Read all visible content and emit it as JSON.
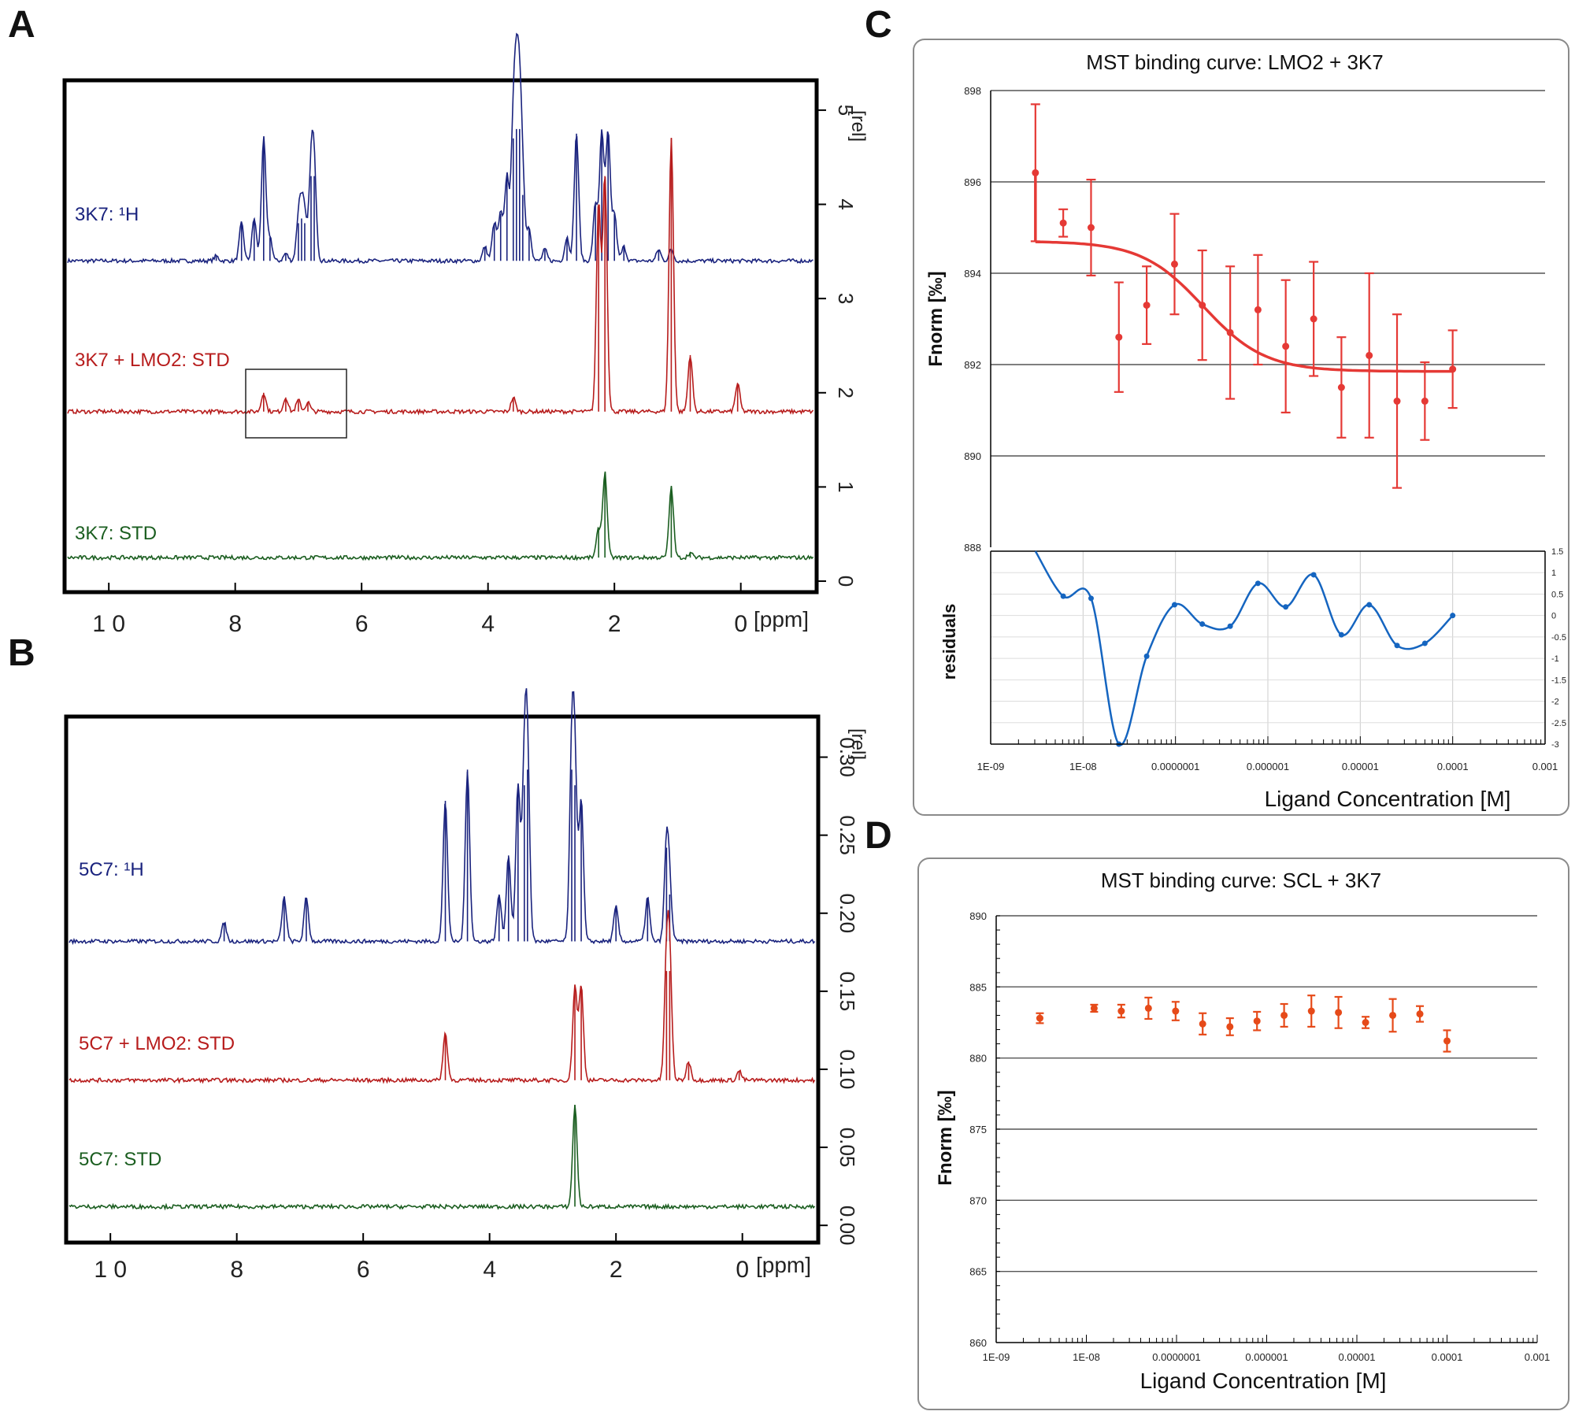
{
  "panel_labels": [
    "A",
    "B",
    "C",
    "D"
  ],
  "chart_data": [
    {
      "id": "A",
      "type": "line",
      "title": "",
      "xlabel": "[ppm]",
      "ylabel": "[rel]",
      "x_ticks": [
        "1 0",
        "8",
        "6",
        "4",
        "2",
        "0"
      ],
      "x_tick_values": [
        10,
        8,
        6,
        4,
        2,
        0
      ],
      "y_ticks": [
        "0",
        "1",
        "2",
        "3",
        "4",
        "5"
      ],
      "xlim": [
        10.7,
        -1.2
      ],
      "ylim": [
        -0.1,
        5.3
      ],
      "series": [
        {
          "name": "3K7: ¹H",
          "color": "#1a237e",
          "baseline": 3.4,
          "peaks": [
            [
              8.3,
              0.05
            ],
            [
              7.9,
              0.4
            ],
            [
              7.7,
              0.45
            ],
            [
              7.55,
              1.3
            ],
            [
              7.45,
              0.25
            ],
            [
              7.2,
              0.08
            ],
            [
              7.0,
              0.4
            ],
            [
              6.95,
              0.45
            ],
            [
              6.9,
              0.4
            ],
            [
              6.8,
              0.9
            ],
            [
              6.75,
              0.9
            ],
            [
              4.05,
              0.15
            ],
            [
              3.9,
              0.4
            ],
            [
              3.8,
              0.5
            ],
            [
              3.7,
              0.9
            ],
            [
              3.6,
              1.3
            ],
            [
              3.55,
              1.4
            ],
            [
              3.5,
              1.4
            ],
            [
              3.45,
              0.7
            ],
            [
              3.35,
              0.35
            ],
            [
              3.1,
              0.12
            ],
            [
              2.75,
              0.25
            ],
            [
              2.6,
              1.35
            ],
            [
              2.3,
              0.6
            ],
            [
              2.2,
              1.35
            ],
            [
              2.1,
              1.35
            ],
            [
              2.0,
              0.5
            ],
            [
              1.85,
              0.15
            ],
            [
              1.3,
              0.12
            ],
            [
              1.1,
              0.12
            ]
          ]
        },
        {
          "name": "3K7 + LMO2: STD",
          "color": "#b71c1c",
          "baseline": 1.8,
          "peaks": [
            [
              7.55,
              0.2
            ],
            [
              7.2,
              0.15
            ],
            [
              7.0,
              0.12
            ],
            [
              6.85,
              0.1
            ],
            [
              3.6,
              0.15
            ],
            [
              2.25,
              2.2
            ],
            [
              2.15,
              2.5
            ],
            [
              1.1,
              2.9
            ],
            [
              0.8,
              0.6
            ],
            [
              0.05,
              0.3
            ]
          ]
        },
        {
          "name": "3K7: STD",
          "color": "#1b5e20",
          "baseline": 0.25,
          "peaks": [
            [
              2.25,
              0.3
            ],
            [
              2.15,
              0.9
            ],
            [
              1.1,
              0.75
            ],
            [
              0.8,
              0.05
            ]
          ]
        }
      ],
      "annotations": [
        "box around 6.2–7.8 ppm on STD trace"
      ]
    },
    {
      "id": "B",
      "type": "line",
      "title": "",
      "xlabel": "[ppm]",
      "ylabel": "[rel]",
      "x_ticks": [
        "1 0",
        "8",
        "6",
        "4",
        "2",
        "0"
      ],
      "x_tick_values": [
        10,
        8,
        6,
        4,
        2,
        0
      ],
      "y_ticks": [
        "0.00",
        "0.05",
        "0.10",
        "0.15",
        "0.20",
        "0.25",
        "0.30"
      ],
      "xlim": [
        10.7,
        -1.2
      ],
      "ylim": [
        -0.01,
        0.325
      ],
      "series": [
        {
          "name": "5C7: ¹H",
          "color": "#1a237e",
          "baseline": 0.182,
          "peaks": [
            [
              8.2,
              0.012
            ],
            [
              7.25,
              0.028
            ],
            [
              6.9,
              0.028
            ],
            [
              4.7,
              0.09
            ],
            [
              4.35,
              0.11
            ],
            [
              3.85,
              0.03
            ],
            [
              3.7,
              0.055
            ],
            [
              3.55,
              0.1
            ],
            [
              3.45,
              0.1
            ],
            [
              3.4,
              0.11
            ],
            [
              2.7,
              0.11
            ],
            [
              2.65,
              0.1
            ],
            [
              2.55,
              0.09
            ],
            [
              2.0,
              0.022
            ],
            [
              1.5,
              0.028
            ],
            [
              1.2,
              0.06
            ],
            [
              1.15,
              0.03
            ]
          ]
        },
        {
          "name": "5C7 + LMO2: STD",
          "color": "#b71c1c",
          "baseline": 0.093,
          "peaks": [
            [
              4.7,
              0.03
            ],
            [
              2.65,
              0.06
            ],
            [
              2.55,
              0.06
            ],
            [
              1.2,
              0.07
            ],
            [
              1.15,
              0.07
            ],
            [
              0.85,
              0.012
            ],
            [
              0.05,
              0.006
            ]
          ]
        },
        {
          "name": "5C7: STD",
          "color": "#1b5e20",
          "baseline": 0.012,
          "peaks": [
            [
              2.65,
              0.065
            ]
          ]
        }
      ]
    },
    {
      "id": "C",
      "type": "scatter",
      "title": "MST binding curve: LMO2 + 3K7",
      "xlabel": "Ligand Concentration [M]",
      "ylabel": "Fnorm [‰]",
      "x_tick_labels": [
        "1E-09",
        "1E-08",
        "0.0000001",
        "0.000001",
        "0.00001",
        "0.0001",
        "0.001"
      ],
      "y_tick_labels": [
        "888",
        "890",
        "892",
        "894",
        "896",
        "898"
      ],
      "xlim": [
        1e-09,
        0.001
      ],
      "ylim": [
        888,
        898
      ],
      "x": [
        3.05e-09,
        6.1e-09,
        1.22e-08,
        2.44e-08,
        4.88e-08,
        9.77e-08,
        1.95e-07,
        3.91e-07,
        7.81e-07,
        1.56e-06,
        3.13e-06,
        6.25e-06,
        1.25e-05,
        2.5e-05,
        5e-05,
        0.0001
      ],
      "y": [
        896.2,
        895.1,
        895.0,
        892.6,
        893.3,
        894.2,
        893.3,
        892.7,
        893.2,
        892.4,
        893.0,
        891.5,
        892.2,
        891.2,
        891.2,
        891.9
      ],
      "err": [
        1.5,
        0.3,
        1.05,
        1.2,
        0.85,
        1.1,
        1.2,
        1.45,
        1.2,
        1.45,
        1.25,
        1.1,
        1.8,
        1.9,
        0.85,
        0.85
      ],
      "point_color": "#e53935",
      "fit": {
        "color": "#e53935",
        "top": 894.7,
        "bottom": 891.85,
        "ec50": 2e-07,
        "hill": 1.3,
        "x_range": [
          3.05e-09,
          0.0001
        ]
      },
      "residuals": {
        "ylabel": "residuals",
        "y_tick_labels": [
          "-3",
          "-2.5",
          "-2",
          "-1.5",
          "-1",
          "-0.5",
          "0",
          "0.5",
          "1",
          "1.5"
        ],
        "ylim": [
          -3,
          1.5
        ],
        "values": [
          1.5,
          0.45,
          0.4,
          -3.0,
          -0.95,
          0.25,
          -0.2,
          -0.25,
          0.75,
          0.2,
          0.95,
          -0.45,
          0.25,
          -0.7,
          -0.65,
          0.0
        ],
        "color": "#1565c0"
      }
    },
    {
      "id": "D",
      "type": "scatter",
      "title": "MST binding curve: SCL + 3K7",
      "xlabel": "Ligand Concentration [M]",
      "ylabel": "Fnorm [‰]",
      "x_tick_labels": [
        "1E-09",
        "1E-08",
        "0.0000001",
        "0.000001",
        "0.00001",
        "0.0001",
        "0.001"
      ],
      "y_tick_labels": [
        "860",
        "865",
        "870",
        "875",
        "880",
        "885",
        "890"
      ],
      "xlim": [
        1e-09,
        0.001
      ],
      "ylim": [
        860,
        890
      ],
      "x": [
        3.05e-09,
        1.22e-08,
        2.44e-08,
        4.88e-08,
        9.77e-08,
        1.95e-07,
        3.91e-07,
        7.81e-07,
        1.56e-06,
        3.13e-06,
        6.25e-06,
        1.25e-05,
        2.5e-05,
        5e-05,
        0.0001
      ],
      "y": [
        882.8,
        883.5,
        883.3,
        883.5,
        883.3,
        882.4,
        882.2,
        882.6,
        883.0,
        883.3,
        883.2,
        882.5,
        883.0,
        883.1,
        881.2
      ],
      "err": [
        0.35,
        0.25,
        0.45,
        0.75,
        0.65,
        0.75,
        0.6,
        0.65,
        0.8,
        1.1,
        1.1,
        0.4,
        1.15,
        0.55,
        0.75
      ],
      "point_color": "#e64a19"
    }
  ]
}
